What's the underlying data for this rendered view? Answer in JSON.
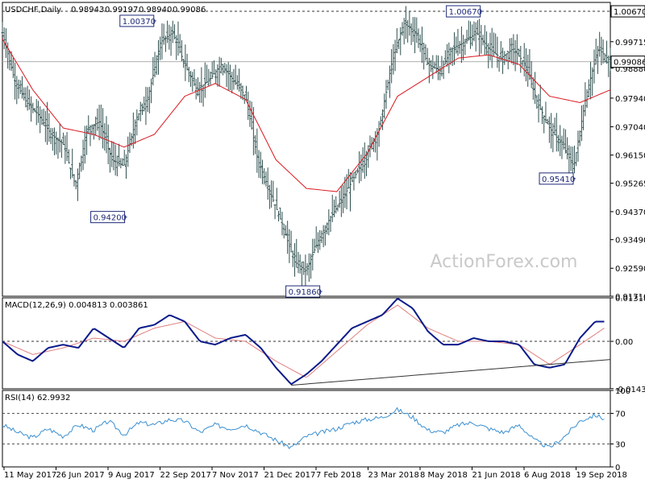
{
  "chart_data": [
    {
      "type": "candlestick",
      "title": "USDCHF,Daily",
      "ohlc_readout": [
        "0.98943",
        "0.99197",
        "0.98940",
        "0.99086"
      ],
      "watermark": "ActionForex.com",
      "ylim": [
        0.9171,
        1.0095
      ],
      "y_ticks": [
        "1.00670",
        "0.99715",
        "0.98880",
        "0.97940",
        "0.97040",
        "0.96150",
        "0.95265",
        "0.94370",
        "0.93490",
        "0.92590",
        "0.91710"
      ],
      "resistance_level": 1.0067,
      "resistance_label": "1.00670",
      "last_price": 0.99086,
      "last_price_label": "0.99086",
      "annotations": [
        {
          "label": "1.00370",
          "x": 0.253,
          "value": 1.0037,
          "side": "left"
        },
        {
          "label": "0.94200",
          "x": 0.205,
          "value": 0.942,
          "side": "left"
        },
        {
          "label": "0.91860",
          "x": 0.526,
          "value": 0.9186,
          "side": "left"
        },
        {
          "label": "1.00670",
          "x": 0.79,
          "value": 1.0067,
          "side": "left"
        },
        {
          "label": "0.95410",
          "x": 0.943,
          "value": 0.9541,
          "side": "left"
        }
      ],
      "price_series": {
        "x": [
          0,
          0.02,
          0.04,
          0.06,
          0.08,
          0.1,
          0.12,
          0.14,
          0.16,
          0.18,
          0.2,
          0.22,
          0.24,
          0.26,
          0.28,
          0.3,
          0.32,
          0.34,
          0.36,
          0.38,
          0.4,
          0.42,
          0.44,
          0.46,
          0.48,
          0.5,
          0.52,
          0.54,
          0.56,
          0.58,
          0.6,
          0.62,
          0.64,
          0.66,
          0.68,
          0.7,
          0.72,
          0.74,
          0.76,
          0.78,
          0.8,
          0.82,
          0.84,
          0.86,
          0.88,
          0.9,
          0.92,
          0.94,
          0.96,
          0.98,
          1
        ],
        "values": [
          1.0,
          0.985,
          0.978,
          0.974,
          0.968,
          0.965,
          0.952,
          0.97,
          0.972,
          0.96,
          0.958,
          0.973,
          0.98,
          0.997,
          1.0,
          0.99,
          0.982,
          0.985,
          0.99,
          0.985,
          0.98,
          0.96,
          0.95,
          0.94,
          0.928,
          0.925,
          0.935,
          0.942,
          0.948,
          0.955,
          0.962,
          0.97,
          0.99,
          1.003,
          1.0,
          0.99,
          0.988,
          0.995,
          0.997,
          1.0,
          0.995,
          0.992,
          0.995,
          0.99,
          0.978,
          0.97,
          0.965,
          0.958,
          0.98,
          0.995,
          0.991
        ]
      },
      "ma_series": {
        "x": [
          0,
          0.05,
          0.1,
          0.15,
          0.2,
          0.25,
          0.3,
          0.35,
          0.4,
          0.45,
          0.5,
          0.55,
          0.6,
          0.65,
          0.7,
          0.75,
          0.8,
          0.85,
          0.9,
          0.95,
          1
        ],
        "values": [
          0.998,
          0.982,
          0.97,
          0.968,
          0.964,
          0.968,
          0.98,
          0.984,
          0.979,
          0.96,
          0.951,
          0.95,
          0.962,
          0.98,
          0.986,
          0.992,
          0.993,
          0.99,
          0.98,
          0.978,
          0.982
        ]
      },
      "candle_color": "#2f4f4f",
      "ma_color": "#d9191f"
    },
    {
      "type": "line",
      "title": "MACD(12,26,9) 0.004813 0.003861",
      "ylim": [
        -0.01439,
        0.013184
      ],
      "y_ticks": [
        "0.013184",
        "0.00",
        "-0.014339"
      ],
      "zero_line": 0,
      "macd_series": {
        "x": [
          0,
          0.025,
          0.05,
          0.075,
          0.1,
          0.125,
          0.15,
          0.175,
          0.2,
          0.225,
          0.25,
          0.275,
          0.3,
          0.325,
          0.35,
          0.375,
          0.4,
          0.425,
          0.45,
          0.475,
          0.5,
          0.525,
          0.55,
          0.575,
          0.6,
          0.625,
          0.65,
          0.675,
          0.7,
          0.725,
          0.75,
          0.775,
          0.8,
          0.825,
          0.85,
          0.875,
          0.9,
          0.925,
          0.95,
          0.975,
          0.99
        ],
        "values": [
          0.0,
          -0.004,
          -0.006,
          -0.002,
          -0.001,
          -0.002,
          0.004,
          0.001,
          -0.002,
          0.004,
          0.005,
          0.008,
          0.006,
          0.0,
          -0.001,
          0.001,
          0.002,
          -0.002,
          -0.008,
          -0.013,
          -0.01,
          -0.006,
          -0.001,
          0.004,
          0.006,
          0.008,
          0.013,
          0.01,
          0.003,
          -0.001,
          -0.001,
          0.001,
          0.0,
          0.0,
          -0.001,
          -0.007,
          -0.008,
          -0.007,
          0.001,
          0.006,
          0.006
        ]
      },
      "signal_series": {
        "x": [
          0,
          0.05,
          0.1,
          0.15,
          0.2,
          0.25,
          0.3,
          0.35,
          0.4,
          0.45,
          0.5,
          0.55,
          0.6,
          0.65,
          0.7,
          0.75,
          0.8,
          0.85,
          0.9,
          0.95,
          0.99
        ],
        "values": [
          0.0,
          -0.004,
          -0.002,
          0.001,
          0.0,
          0.004,
          0.006,
          0.001,
          0.0,
          -0.006,
          -0.011,
          -0.003,
          0.005,
          0.011,
          0.004,
          0.0,
          0.0,
          -0.001,
          -0.007,
          -0.001,
          0.004
        ]
      },
      "trendline": {
        "x": [
          0.475,
          1.0
        ],
        "values": [
          -0.0133,
          -0.0055
        ]
      },
      "macd_color": "#0a1a8a",
      "signal_color": "#e08080"
    },
    {
      "type": "line",
      "title": "RSI(14) 62.9932",
      "ylim": [
        0,
        100
      ],
      "y_ticks": [
        "100",
        "70",
        "30",
        "0"
      ],
      "levels": [
        70,
        30
      ],
      "rsi_series": {
        "x": [
          0,
          0.025,
          0.05,
          0.075,
          0.1,
          0.125,
          0.15,
          0.175,
          0.2,
          0.225,
          0.25,
          0.275,
          0.3,
          0.325,
          0.35,
          0.375,
          0.4,
          0.425,
          0.45,
          0.475,
          0.5,
          0.525,
          0.55,
          0.575,
          0.6,
          0.625,
          0.65,
          0.675,
          0.7,
          0.725,
          0.75,
          0.775,
          0.8,
          0.825,
          0.85,
          0.875,
          0.9,
          0.925,
          0.95,
          0.975,
          0.99
        ],
        "values": [
          55,
          45,
          38,
          50,
          40,
          55,
          48,
          60,
          42,
          58,
          55,
          62,
          60,
          45,
          55,
          50,
          55,
          45,
          35,
          25,
          40,
          45,
          50,
          58,
          62,
          65,
          75,
          65,
          48,
          45,
          55,
          58,
          50,
          45,
          55,
          35,
          25,
          40,
          60,
          68,
          63
        ]
      },
      "rsi_color": "#3a8fd0"
    }
  ],
  "x_ticks": [
    "11 May 2017",
    "26 Jun 2017",
    "9 Aug 2017",
    "22 Sep 2017",
    "7 Nov 2017",
    "21 Dec 2017",
    "7 Feb 2018",
    "23 Mar 2018",
    "8 May 2018",
    "21 Jun 2018",
    "6 Aug 2018",
    "19 Sep 2018"
  ]
}
